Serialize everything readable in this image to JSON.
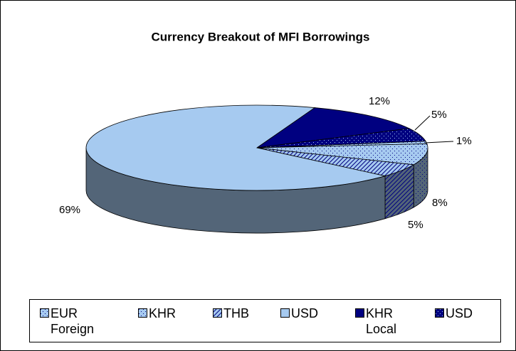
{
  "chart_data": {
    "type": "pie3d",
    "title": "Currency Breakout of MFI Borrowings",
    "categories": [
      "EUR Foreign",
      "KHR",
      "THB",
      "USD",
      "KHR Local",
      "USD"
    ],
    "values": [
      1,
      8,
      5,
      69,
      12,
      5
    ],
    "value_labels": [
      "1%",
      "8%",
      "5%",
      "69%",
      "12%",
      "5%"
    ],
    "colors": [
      "#a6caf0",
      "#a6caf0",
      "#a6caf0",
      "#a6caf0",
      "#000080",
      "#000080"
    ],
    "patterns": [
      "dots",
      "dots",
      "hatch",
      "none",
      "none",
      "dots"
    ],
    "legend": "bottom"
  }
}
